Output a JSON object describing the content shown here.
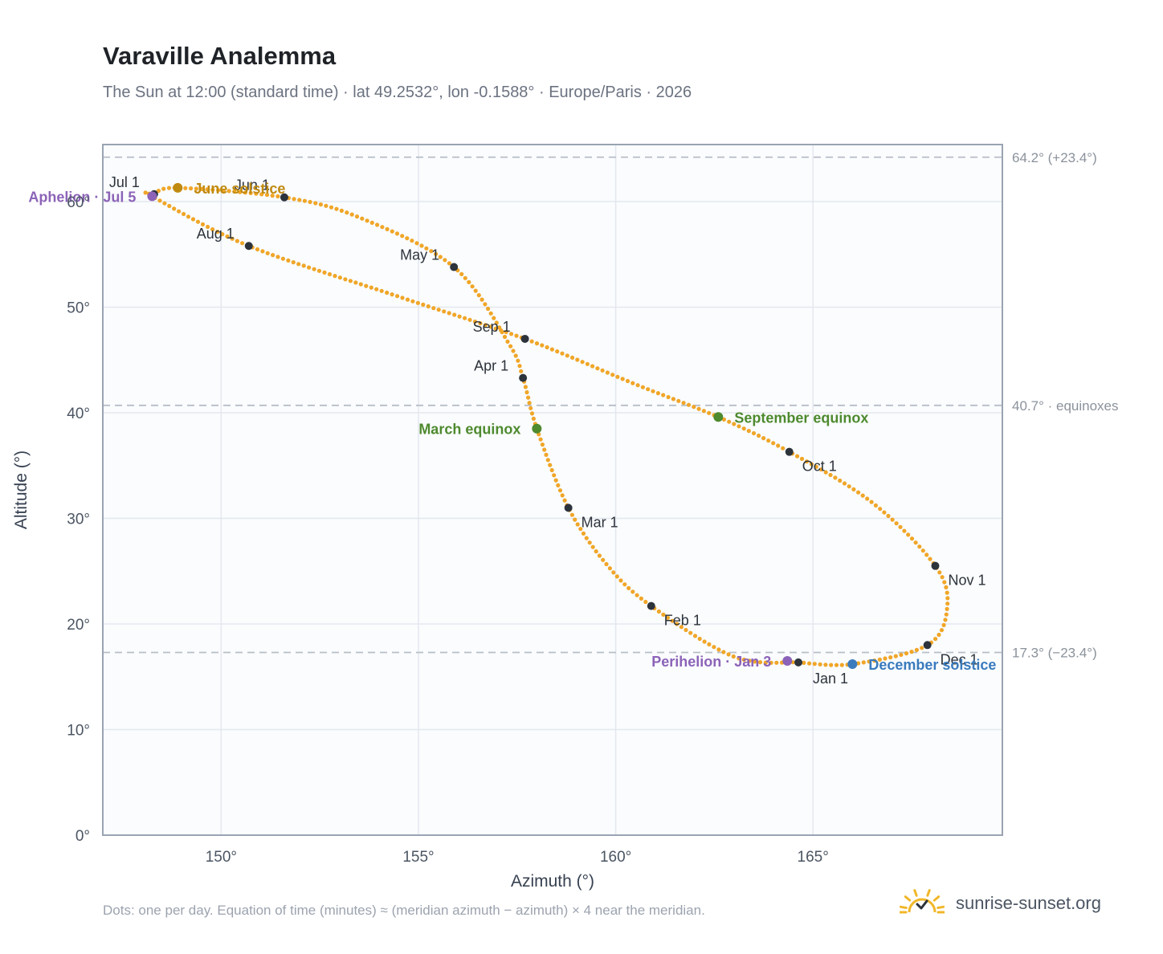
{
  "header": {
    "title": "Varaville Analemma",
    "subtitle": "The Sun at 12:00 (standard time) · lat 49.2532°, lon -0.1588° · Europe/Paris · 2026"
  },
  "footer": {
    "note": "Dots: one per day. Equation of time (minutes) ≈ (meridian azimuth − azimuth) × 4 near the meridian.",
    "brand": "sunrise-sunset.org"
  },
  "colors": {
    "curve": "#f0a628",
    "month_dot": "#2d333b",
    "solstice_june": "#c08a10",
    "solstice_december": "#3a7bbd",
    "equinox": "#4e8a2e",
    "apsis": "#8c63b8",
    "reference_line": "#b8bec6",
    "plot_bg": "#fafcfe",
    "grid": "#e4e8ee",
    "axis": "#9aa4b2",
    "logo": "#f1b729"
  },
  "chart_data": {
    "type": "scatter",
    "xlabel": "Azimuth (°)",
    "ylabel": "Altitude (°)",
    "xlim": [
      147,
      169.8
    ],
    "ylim": [
      0,
      65.4
    ],
    "xticks": [
      150,
      155,
      160,
      165
    ],
    "xtick_labels": [
      "150°",
      "155°",
      "160°",
      "165°"
    ],
    "yticks": [
      0,
      10,
      20,
      30,
      40,
      50,
      60
    ],
    "ytick_labels": [
      "0°",
      "10°",
      "20°",
      "30°",
      "40°",
      "50°",
      "60°"
    ],
    "grid": true,
    "analemma_anchor_points": [
      {
        "x": 164.63,
        "y": 16.36
      },
      {
        "x": 163.0,
        "y": 16.9
      },
      {
        "x": 160.9,
        "y": 21.7
      },
      {
        "x": 159.8,
        "y": 25.5
      },
      {
        "x": 158.8,
        "y": 31.0
      },
      {
        "x": 158.0,
        "y": 38.5
      },
      {
        "x": 157.65,
        "y": 43.3
      },
      {
        "x": 157.3,
        "y": 46.5
      },
      {
        "x": 155.9,
        "y": 53.8
      },
      {
        "x": 153.5,
        "y": 58.5
      },
      {
        "x": 151.6,
        "y": 60.4
      },
      {
        "x": 148.9,
        "y": 61.3
      },
      {
        "x": 148.3,
        "y": 60.7
      },
      {
        "x": 148.25,
        "y": 60.5
      },
      {
        "x": 150.7,
        "y": 55.8
      },
      {
        "x": 154.5,
        "y": 51.0
      },
      {
        "x": 157.7,
        "y": 47.0
      },
      {
        "x": 160.5,
        "y": 42.7
      },
      {
        "x": 162.6,
        "y": 39.6
      },
      {
        "x": 164.4,
        "y": 36.3
      },
      {
        "x": 166.5,
        "y": 31.5
      },
      {
        "x": 168.1,
        "y": 25.5
      },
      {
        "x": 168.4,
        "y": 21.5
      },
      {
        "x": 167.9,
        "y": 18.0
      },
      {
        "x": 166.0,
        "y": 16.2
      },
      {
        "x": 164.63,
        "y": 16.36
      }
    ],
    "month_markers": [
      {
        "label": "Jan 1",
        "x": 164.63,
        "y": 16.36,
        "anchor": "below-right"
      },
      {
        "label": "Feb 1",
        "x": 160.9,
        "y": 21.7,
        "anchor": "right-below"
      },
      {
        "label": "Mar 1",
        "x": 158.8,
        "y": 31.0,
        "anchor": "right-below"
      },
      {
        "label": "Apr 1",
        "x": 157.65,
        "y": 43.3,
        "anchor": "left-above"
      },
      {
        "label": "May 1",
        "x": 155.9,
        "y": 53.8,
        "anchor": "left-above"
      },
      {
        "label": "Jun 1",
        "x": 151.6,
        "y": 60.4,
        "anchor": "left-above"
      },
      {
        "label": "Jul 1",
        "x": 148.3,
        "y": 60.7,
        "anchor": "left-above"
      },
      {
        "label": "Aug 1",
        "x": 150.7,
        "y": 55.8,
        "anchor": "left-above"
      },
      {
        "label": "Sep 1",
        "x": 157.7,
        "y": 47.0,
        "anchor": "left-above"
      },
      {
        "label": "Oct 1",
        "x": 164.4,
        "y": 36.3,
        "anchor": "right-below"
      },
      {
        "label": "Nov 1",
        "x": 168.1,
        "y": 25.5,
        "anchor": "right-below"
      },
      {
        "label": "Dec 1",
        "x": 167.9,
        "y": 18.0,
        "anchor": "right-below"
      }
    ],
    "events": [
      {
        "label": "June solstice",
        "x": 148.9,
        "y": 61.3,
        "kind": "solstice_june",
        "anchor": "right"
      },
      {
        "label": "December solstice",
        "x": 166.0,
        "y": 16.2,
        "kind": "solstice_december",
        "anchor": "right"
      },
      {
        "label": "March equinox",
        "x": 158.0,
        "y": 38.5,
        "kind": "equinox",
        "anchor": "left"
      },
      {
        "label": "September equinox",
        "x": 162.6,
        "y": 39.6,
        "kind": "equinox",
        "anchor": "right"
      },
      {
        "label": "Aphelion · Jul 5",
        "x": 148.25,
        "y": 60.5,
        "kind": "apsis",
        "anchor": "left"
      },
      {
        "label": "Perihelion · Jan 3",
        "x": 164.35,
        "y": 16.5,
        "kind": "apsis",
        "anchor": "left"
      }
    ],
    "reference_lines": [
      {
        "y": 64.2,
        "label": "64.2° (+23.4°)"
      },
      {
        "y": 40.7,
        "label": "40.7° · equinoxes"
      },
      {
        "y": 17.3,
        "label": "17.3° (−23.4°)"
      }
    ]
  }
}
